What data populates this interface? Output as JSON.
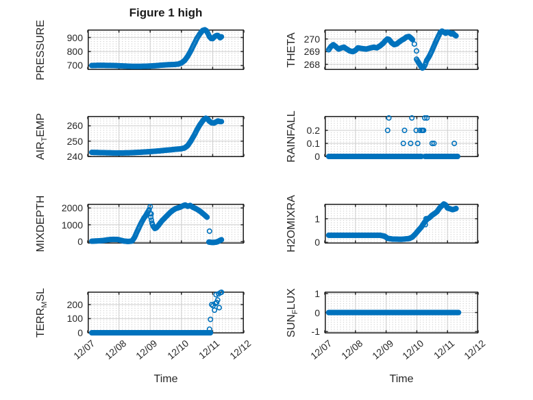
{
  "title": "Figure 1 high",
  "colors": {
    "marker": "#0072BD",
    "axis": "#262626",
    "text": "#262626",
    "major_grid": "#cfcfcf",
    "minor_grid": "#bdbdbd",
    "background": "#ffffff"
  },
  "chart_data": {
    "type": "scatter",
    "layout": "4x2-subplot-grid",
    "marker": "open-circle",
    "xlabel": "Time",
    "xlim": [
      0,
      5
    ],
    "x_ticks": [
      0,
      1,
      2,
      3,
      4,
      5
    ],
    "x_tick_labels": [
      "12/07",
      "12/08",
      "12/09",
      "12/10",
      "12/11",
      "12/12"
    ],
    "grid": "major solid + dotted minor",
    "subplots": [
      {
        "id": "pressure",
        "ylabel": "PRESSURE",
        "ylabel_parts": [
          {
            "t": "PRESSURE"
          }
        ],
        "yticks": [
          700,
          800,
          900
        ],
        "ylim": [
          668,
          957
        ],
        "series": [
          [
            [
              0.13,
              700
            ],
            [
              0.4,
              701
            ],
            [
              0.8,
              700
            ],
            [
              1.1,
              697
            ],
            [
              1.4,
              694
            ],
            [
              1.7,
              694
            ],
            [
              2.0,
              696
            ],
            [
              2.2,
              699
            ],
            [
              2.4,
              703
            ],
            [
              2.6,
              706
            ],
            [
              2.75,
              707
            ],
            [
              2.9,
              710
            ],
            [
              3.0,
              718
            ],
            [
              3.1,
              735
            ],
            [
              3.2,
              765
            ],
            [
              3.3,
              805
            ],
            [
              3.4,
              850
            ],
            [
              3.5,
              895
            ],
            [
              3.55,
              912
            ],
            [
              3.62,
              935
            ],
            [
              3.68,
              950
            ],
            [
              3.75,
              955
            ],
            [
              3.8,
              948
            ],
            [
              3.85,
              928
            ],
            [
              3.9,
              905
            ],
            [
              3.95,
              893
            ],
            [
              4.0,
              892
            ],
            [
              4.05,
              903
            ],
            [
              4.1,
              912
            ],
            [
              4.16,
              915
            ],
            [
              4.2,
              908
            ],
            [
              4.24,
              898
            ],
            [
              4.28,
              905
            ]
          ]
        ],
        "points": []
      },
      {
        "id": "theta",
        "ylabel": "THETA",
        "ylabel_parts": [
          {
            "t": "THETA"
          }
        ],
        "yticks": [
          268,
          269,
          270
        ],
        "ylim": [
          267.55,
          270.75
        ],
        "series": [
          [
            [
              0.13,
              269.15
            ],
            [
              0.2,
              269.4
            ],
            [
              0.28,
              269.55
            ],
            [
              0.36,
              269.4
            ],
            [
              0.45,
              269.2
            ],
            [
              0.55,
              269.3
            ],
            [
              0.63,
              269.35
            ],
            [
              0.72,
              269.2
            ],
            [
              0.82,
              269.05
            ],
            [
              0.92,
              269.0
            ],
            [
              1.0,
              269.1
            ],
            [
              1.08,
              269.3
            ],
            [
              1.2,
              269.25
            ],
            [
              1.35,
              269.2
            ],
            [
              1.5,
              269.3
            ],
            [
              1.6,
              269.35
            ],
            [
              1.7,
              269.3
            ],
            [
              1.8,
              269.45
            ],
            [
              1.9,
              269.65
            ],
            [
              1.97,
              269.85
            ],
            [
              2.04,
              270.0
            ],
            [
              2.1,
              269.95
            ],
            [
              2.18,
              269.7
            ],
            [
              2.26,
              269.55
            ],
            [
              2.34,
              269.6
            ],
            [
              2.42,
              269.75
            ],
            [
              2.5,
              269.9
            ],
            [
              2.58,
              270.0
            ],
            [
              2.66,
              270.15
            ],
            [
              2.74,
              270.2
            ],
            [
              2.8,
              270.1
            ],
            [
              2.86,
              269.95
            ]
          ],
          [
            [
              2.99,
              268.4
            ],
            [
              3.04,
              268.2
            ],
            [
              3.08,
              268.05
            ],
            [
              3.13,
              267.85
            ],
            [
              3.18,
              267.7
            ],
            [
              3.22,
              267.75
            ],
            [
              3.27,
              267.95
            ],
            [
              3.32,
              268.3
            ],
            [
              3.4,
              268.6
            ],
            [
              3.48,
              269.0
            ],
            [
              3.56,
              269.45
            ],
            [
              3.64,
              269.9
            ],
            [
              3.7,
              270.2
            ],
            [
              3.76,
              270.5
            ],
            [
              3.82,
              270.62
            ],
            [
              3.88,
              270.55
            ],
            [
              3.94,
              270.45
            ],
            [
              4.0,
              270.55
            ],
            [
              4.06,
              270.5
            ],
            [
              4.12,
              270.4
            ],
            [
              4.18,
              270.45
            ],
            [
              4.24,
              270.3
            ],
            [
              4.28,
              270.25
            ]
          ]
        ],
        "points": [
          [
            2.92,
            269.6
          ],
          [
            2.99,
            269.05
          ]
        ]
      },
      {
        "id": "airtemp",
        "ylabel": "AIR_TEMP",
        "ylabel_parts": [
          {
            "t": "AIR"
          },
          {
            "t": "T",
            "sub": true
          },
          {
            "t": "EMP"
          }
        ],
        "yticks": [
          240,
          250,
          260
        ],
        "ylim": [
          239.5,
          266.5
        ],
        "series": [
          [
            [
              0.13,
              242.6
            ],
            [
              0.5,
              242.4
            ],
            [
              0.9,
              242.2
            ],
            [
              1.3,
              242.3
            ],
            [
              1.7,
              242.7
            ],
            [
              2.0,
              243.1
            ],
            [
              2.3,
              243.6
            ],
            [
              2.6,
              244.2
            ],
            [
              2.85,
              244.7
            ],
            [
              3.0,
              245.0
            ],
            [
              3.1,
              245.5
            ],
            [
              3.2,
              247.0
            ],
            [
              3.3,
              250.0
            ],
            [
              3.4,
              253.5
            ],
            [
              3.5,
              257.5
            ],
            [
              3.6,
              261.0
            ],
            [
              3.7,
              263.8
            ],
            [
              3.78,
              265.0
            ],
            [
              3.84,
              264.5
            ],
            [
              3.9,
              263.0
            ],
            [
              3.97,
              262.0
            ],
            [
              4.04,
              261.8
            ],
            [
              4.1,
              262.5
            ],
            [
              4.17,
              263.2
            ],
            [
              4.23,
              262.8
            ],
            [
              4.28,
              262.8
            ]
          ]
        ],
        "points": []
      },
      {
        "id": "rainfall",
        "ylabel": "RAINFALL",
        "ylabel_parts": [
          {
            "t": "RAINFALL"
          }
        ],
        "yticks": [
          0,
          0.1,
          0.2
        ],
        "ylim": [
          -0.005,
          0.31
        ],
        "series": [
          [
            [
              0.13,
              0
            ],
            [
              3.15,
              0
            ]
          ],
          [
            [
              3.27,
              0
            ],
            [
              4.33,
              0
            ]
          ]
        ],
        "points": [
          [
            2.09,
            0.295
          ],
          [
            2.84,
            0.295
          ],
          [
            3.26,
            0.295
          ],
          [
            3.33,
            0.295
          ],
          [
            2.05,
            0.2
          ],
          [
            2.6,
            0.2
          ],
          [
            2.98,
            0.2
          ],
          [
            3.1,
            0.2
          ],
          [
            3.16,
            0.2
          ],
          [
            3.19,
            0.2
          ],
          [
            3.22,
            0.2
          ],
          [
            2.56,
            0.1
          ],
          [
            2.8,
            0.1
          ],
          [
            3.03,
            0.1
          ],
          [
            3.5,
            0.1
          ],
          [
            3.56,
            0.1
          ],
          [
            4.22,
            0.1
          ]
        ]
      },
      {
        "id": "mixdepth",
        "ylabel": "MIXDEPTH",
        "ylabel_parts": [
          {
            "t": "MIXDEPTH"
          }
        ],
        "yticks": [
          0,
          1000,
          2000
        ],
        "ylim": [
          -120,
          2250
        ],
        "series": [
          [
            [
              0.13,
              20
            ],
            [
              0.3,
              35
            ],
            [
              0.5,
              60
            ],
            [
              0.65,
              105
            ],
            [
              0.8,
              130
            ],
            [
              0.95,
              125
            ],
            [
              1.05,
              80
            ],
            [
              1.15,
              30
            ],
            [
              1.3,
              5
            ],
            [
              1.42,
              30
            ],
            [
              1.5,
              250
            ],
            [
              1.56,
              500
            ],
            [
              1.62,
              750
            ],
            [
              1.68,
              980
            ],
            [
              1.74,
              1200
            ],
            [
              1.8,
              1400
            ],
            [
              1.86,
              1550
            ],
            [
              1.92,
              1750
            ],
            [
              1.97,
              1900
            ],
            [
              2.02,
              1450
            ],
            [
              2.06,
              1100
            ],
            [
              2.1,
              900
            ],
            [
              2.15,
              780
            ],
            [
              2.2,
              820
            ],
            [
              2.26,
              950
            ],
            [
              2.32,
              1100
            ],
            [
              2.4,
              1280
            ],
            [
              2.48,
              1430
            ],
            [
              2.56,
              1580
            ],
            [
              2.64,
              1730
            ],
            [
              2.72,
              1850
            ],
            [
              2.8,
              1950
            ],
            [
              2.88,
              2000
            ],
            [
              2.96,
              2050
            ],
            [
              3.04,
              2120
            ],
            [
              3.12,
              2180
            ],
            [
              3.2,
              2100
            ],
            [
              3.28,
              2150
            ],
            [
              3.36,
              2050
            ],
            [
              3.44,
              1980
            ],
            [
              3.52,
              1900
            ],
            [
              3.6,
              1800
            ],
            [
              3.68,
              1680
            ],
            [
              3.76,
              1550
            ],
            [
              3.82,
              1450
            ]
          ],
          [
            [
              3.88,
              -30
            ],
            [
              3.95,
              -50
            ],
            [
              4.02,
              -55
            ],
            [
              4.1,
              -40
            ],
            [
              4.16,
              -10
            ],
            [
              4.22,
              50
            ],
            [
              4.28,
              110
            ]
          ]
        ],
        "points": [
          [
            2.0,
            2080
          ],
          [
            2.03,
            1650
          ],
          [
            3.9,
            620
          ]
        ]
      },
      {
        "id": "h2omixra",
        "ylabel": "H2OMIXRA",
        "ylabel_parts": [
          {
            "t": "H2OMIXRA"
          }
        ],
        "yticks": [
          0,
          1
        ],
        "ylim": [
          -0.05,
          1.63
        ],
        "series": [
          [
            [
              0.13,
              0.3
            ],
            [
              0.6,
              0.3
            ],
            [
              1.2,
              0.3
            ],
            [
              1.8,
              0.3
            ],
            [
              1.95,
              0.26
            ],
            [
              2.05,
              0.17
            ],
            [
              2.2,
              0.14
            ],
            [
              2.5,
              0.13
            ],
            [
              2.75,
              0.16
            ],
            [
              2.85,
              0.22
            ],
            [
              2.95,
              0.35
            ],
            [
              3.05,
              0.5
            ],
            [
              3.15,
              0.65
            ],
            [
              3.25,
              0.85
            ],
            [
              3.33,
              0.97
            ],
            [
              3.42,
              1.05
            ],
            [
              3.5,
              1.15
            ],
            [
              3.58,
              1.22
            ],
            [
              3.66,
              1.3
            ],
            [
              3.74,
              1.45
            ],
            [
              3.82,
              1.55
            ],
            [
              3.88,
              1.62
            ],
            [
              3.94,
              1.58
            ],
            [
              4.0,
              1.45
            ],
            [
              4.08,
              1.42
            ],
            [
              4.16,
              1.38
            ],
            [
              4.22,
              1.4
            ],
            [
              4.28,
              1.43
            ]
          ]
        ],
        "points": [
          [
            3.28,
            0.75
          ],
          [
            3.3,
            1.0
          ]
        ]
      },
      {
        "id": "terrmsl",
        "ylabel": "TERR_MSL",
        "ylabel_parts": [
          {
            "t": "TERR"
          },
          {
            "t": "M",
            "sub": true
          },
          {
            "t": "SL"
          }
        ],
        "yticks": [
          0,
          100,
          200
        ],
        "ylim": [
          -5,
          292
        ],
        "series": [
          [
            [
              0.13,
              0
            ],
            [
              3.93,
              0
            ]
          ]
        ],
        "points": [
          [
            3.9,
            25
          ],
          [
            3.93,
            95
          ],
          [
            3.97,
            200
          ],
          [
            4.01,
            192
          ],
          [
            4.06,
            160
          ],
          [
            4.09,
            208
          ],
          [
            4.11,
            270
          ],
          [
            4.13,
            215
          ],
          [
            4.16,
            232
          ],
          [
            4.19,
            276
          ],
          [
            4.21,
            178
          ],
          [
            4.25,
            284
          ],
          [
            4.28,
            287
          ]
        ]
      },
      {
        "id": "sunflux",
        "ylabel": "SUN_FLUX",
        "ylabel_parts": [
          {
            "t": "SUN"
          },
          {
            "t": "F",
            "sub": true
          },
          {
            "t": "LUX"
          }
        ],
        "yticks": [
          -1,
          0,
          1
        ],
        "ylim": [
          -1.1,
          1.1
        ],
        "series": [
          [
            [
              0.13,
              0
            ],
            [
              4.36,
              0
            ]
          ]
        ],
        "points": []
      }
    ]
  }
}
